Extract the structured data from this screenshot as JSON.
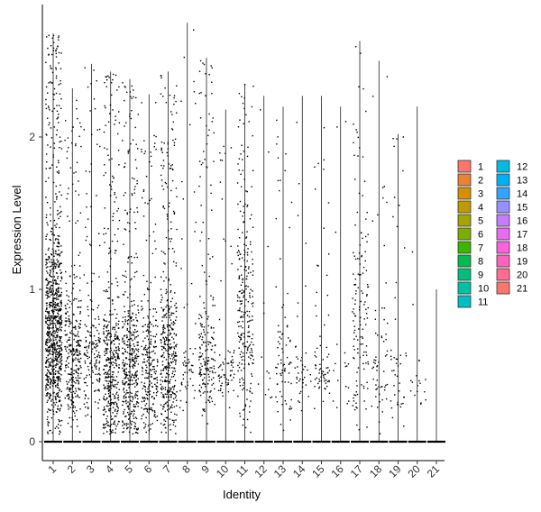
{
  "chart_data": {
    "type": "violin",
    "title": "",
    "xlabel": "Identity",
    "ylabel": "Expression Level",
    "categories": [
      "1",
      "2",
      "3",
      "4",
      "5",
      "6",
      "7",
      "8",
      "9",
      "10",
      "11",
      "12",
      "13",
      "14",
      "15",
      "16",
      "17",
      "18",
      "19",
      "20",
      "21"
    ],
    "ylim": [
      -0.2,
      2.9
    ],
    "yticks": [
      0,
      1,
      2
    ],
    "max_values": [
      2.68,
      2.32,
      2.48,
      2.43,
      2.38,
      2.28,
      2.43,
      2.75,
      2.52,
      2.18,
      2.35,
      2.27,
      2.2,
      2.27,
      2.27,
      2.2,
      2.63,
      2.5,
      2.02,
      2.2,
      1.0
    ],
    "dense_range": [
      [
        0.25,
        1.2
      ],
      [
        0.25,
        0.85
      ],
      [
        0.3,
        0.8
      ],
      [
        0.1,
        0.8
      ],
      [
        0.1,
        0.8
      ],
      [
        0.15,
        0.75
      ],
      [
        0.15,
        0.9
      ],
      [
        0.3,
        0.6
      ],
      [
        0.3,
        0.75
      ],
      [
        0.35,
        0.6
      ],
      [
        0.3,
        1.4
      ],
      [
        0.3,
        0.6
      ],
      [
        0.2,
        0.75
      ],
      [
        0.3,
        0.6
      ],
      [
        0.3,
        0.6
      ],
      [
        0.3,
        0.6
      ],
      [
        0.3,
        1.3
      ],
      [
        0.25,
        0.9
      ],
      [
        0.15,
        0.6
      ],
      [
        0.3,
        0.5
      ],
      [
        0.3,
        0.5
      ]
    ],
    "point_counts": [
      900,
      320,
      180,
      420,
      420,
      260,
      420,
      60,
      200,
      70,
      260,
      14,
      80,
      40,
      70,
      18,
      140,
      60,
      45,
      18,
      0
    ],
    "legend": {
      "labels": [
        "1",
        "2",
        "3",
        "4",
        "5",
        "6",
        "7",
        "8",
        "9",
        "10",
        "11",
        "12",
        "13",
        "14",
        "15",
        "16",
        "17",
        "18",
        "19",
        "20",
        "21"
      ],
      "colors": [
        "#F8766D",
        "#EA8331",
        "#D89000",
        "#C09B00",
        "#A3A500",
        "#7CAE00",
        "#39B600",
        "#00BB4E",
        "#00BF7D",
        "#00C1A3",
        "#00BFC4",
        "#00BAE0",
        "#00B0F6",
        "#35A2FF",
        "#9590FF",
        "#C77CFF",
        "#E76BF3",
        "#FA62DB",
        "#FF62BC",
        "#FF6C91",
        "#F8766D"
      ]
    },
    "grid": false,
    "legend_position": "right"
  }
}
